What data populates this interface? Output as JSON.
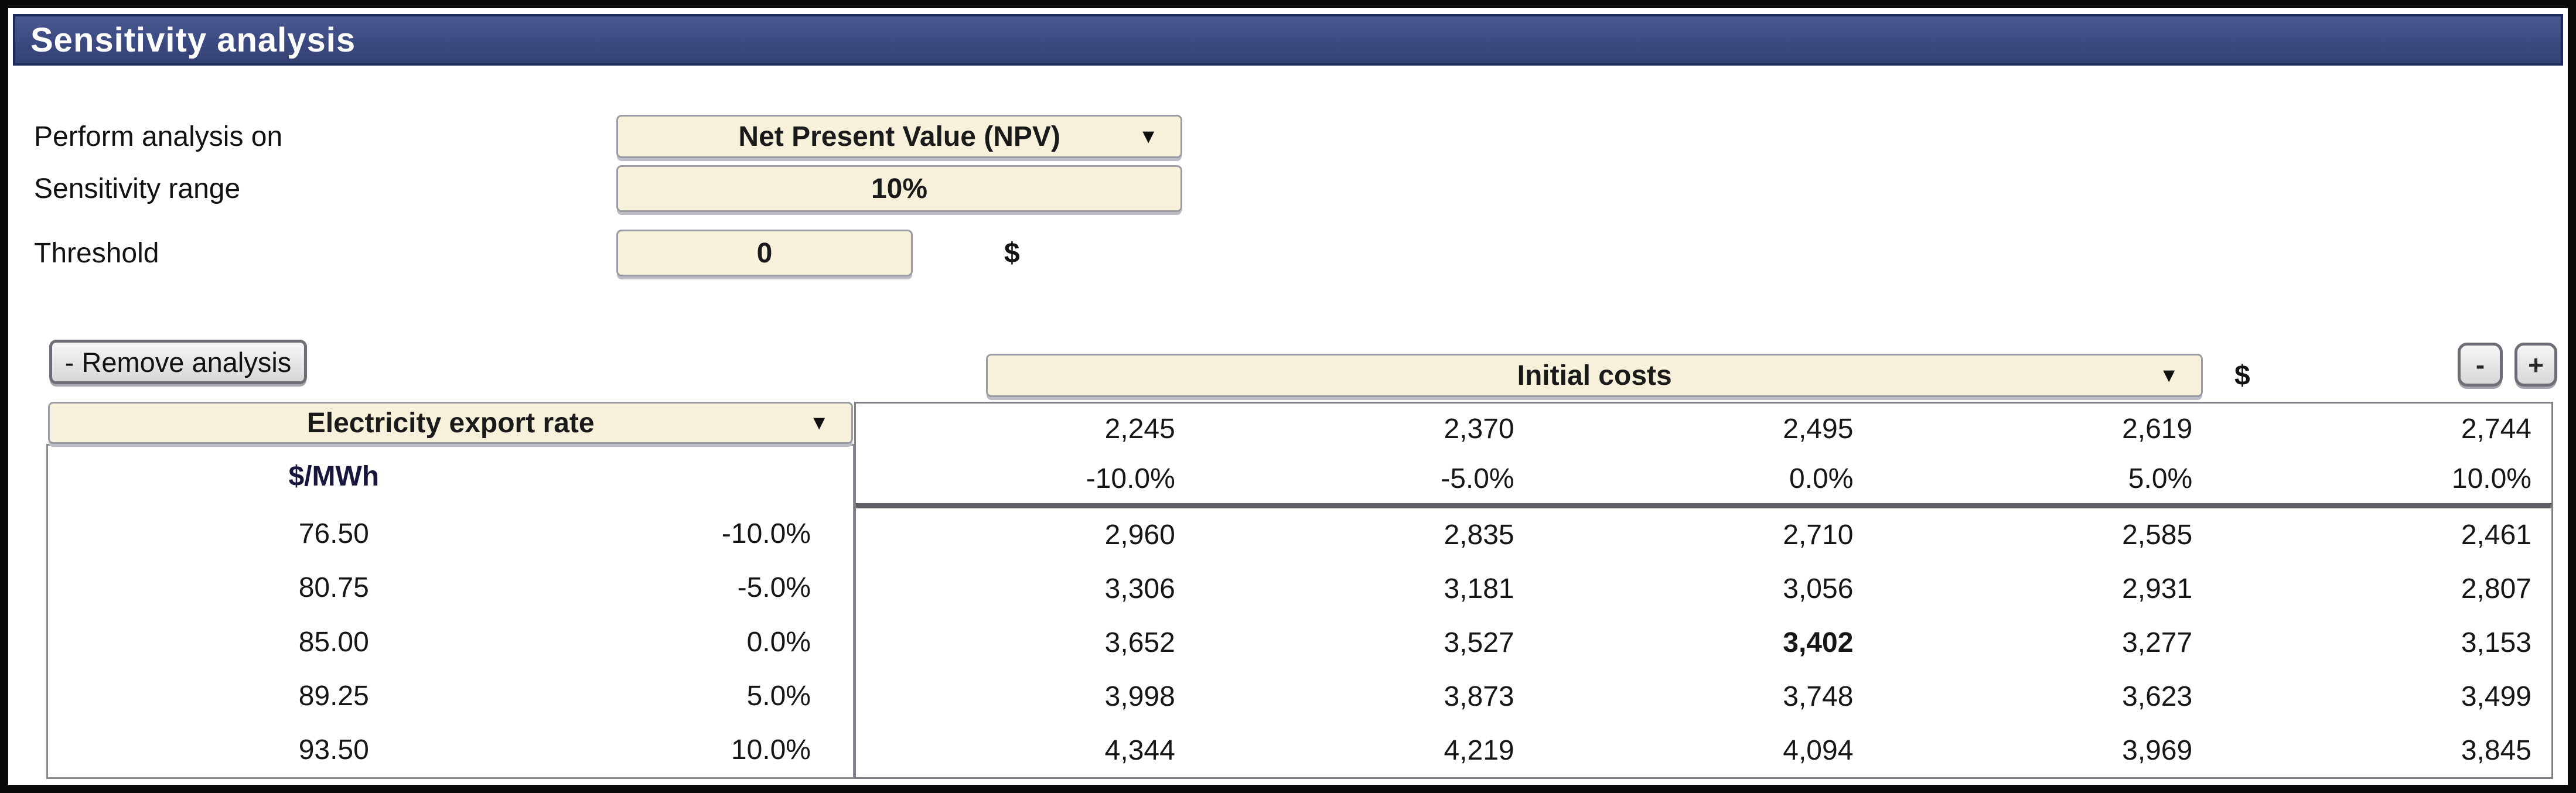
{
  "title": "Sensitivity analysis",
  "form": {
    "perform_label": "Perform analysis on",
    "perform_value": "Net Present Value (NPV)",
    "range_label": "Sensitivity range",
    "range_value": "10%",
    "threshold_label": "Threshold",
    "threshold_value": "0",
    "threshold_unit": "$"
  },
  "toolbar": {
    "remove_label": "- Remove analysis",
    "column_param_value": "Initial costs",
    "column_param_unit": "$",
    "minus_label": "-",
    "plus_label": "+"
  },
  "sensitivity_table": {
    "row_param_value": "Electricity export rate",
    "row_param_unit": "$/MWh",
    "col_header_values": [
      "2,245",
      "2,370",
      "2,495",
      "2,619",
      "2,744"
    ],
    "col_header_percents": [
      "-10.0%",
      "-5.0%",
      "0.0%",
      "5.0%",
      "10.0%"
    ],
    "row_header_values": [
      "76.50",
      "80.75",
      "85.00",
      "89.25",
      "93.50"
    ],
    "row_header_percents": [
      "-10.0%",
      "-5.0%",
      "0.0%",
      "5.0%",
      "10.0%"
    ],
    "matrix": [
      [
        "2,960",
        "2,835",
        "2,710",
        "2,585",
        "2,461"
      ],
      [
        "3,306",
        "3,181",
        "3,056",
        "2,931",
        "2,807"
      ],
      [
        "3,652",
        "3,527",
        "3,402",
        "3,277",
        "3,153"
      ],
      [
        "3,998",
        "3,873",
        "3,748",
        "3,623",
        "3,499"
      ],
      [
        "4,344",
        "4,219",
        "4,094",
        "3,969",
        "3,845"
      ]
    ],
    "base_cell": {
      "row": 2,
      "col": 2
    }
  }
}
